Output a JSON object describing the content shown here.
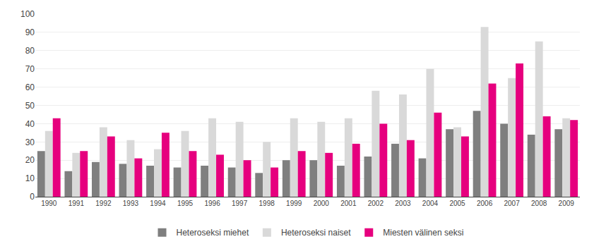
{
  "chart_data": {
    "type": "bar",
    "categories": [
      "1990",
      "1991",
      "1992",
      "1993",
      "1994",
      "1995",
      "1996",
      "1997",
      "1998",
      "1999",
      "2000",
      "2001",
      "2002",
      "2003",
      "2004",
      "2005",
      "2006",
      "2007",
      "2008",
      "2009"
    ],
    "series": [
      {
        "name": "Heteroseksi miehet",
        "color": "#7f7f7f",
        "values": [
          25,
          14,
          19,
          18,
          17,
          16,
          17,
          16,
          13,
          20,
          20,
          17,
          22,
          29,
          21,
          37,
          47,
          40,
          34,
          37
        ]
      },
      {
        "name": "Heteroseksi naiset",
        "color": "#d9d9d9",
        "values": [
          36,
          24,
          38,
          31,
          26,
          36,
          43,
          41,
          30,
          43,
          41,
          43,
          58,
          56,
          70,
          38,
          93,
          65,
          85,
          43
        ]
      },
      {
        "name": "Miesten välinen seksi",
        "color": "#e6007e",
        "values": [
          43,
          25,
          33,
          21,
          35,
          25,
          23,
          20,
          16,
          25,
          24,
          29,
          40,
          31,
          46,
          33,
          62,
          73,
          44,
          42
        ]
      }
    ],
    "ylim": [
      0,
      100
    ],
    "yticks": [
      0,
      10,
      20,
      30,
      40,
      50,
      60,
      70,
      80,
      90,
      100
    ],
    "grid": true,
    "legend": "bottom"
  }
}
